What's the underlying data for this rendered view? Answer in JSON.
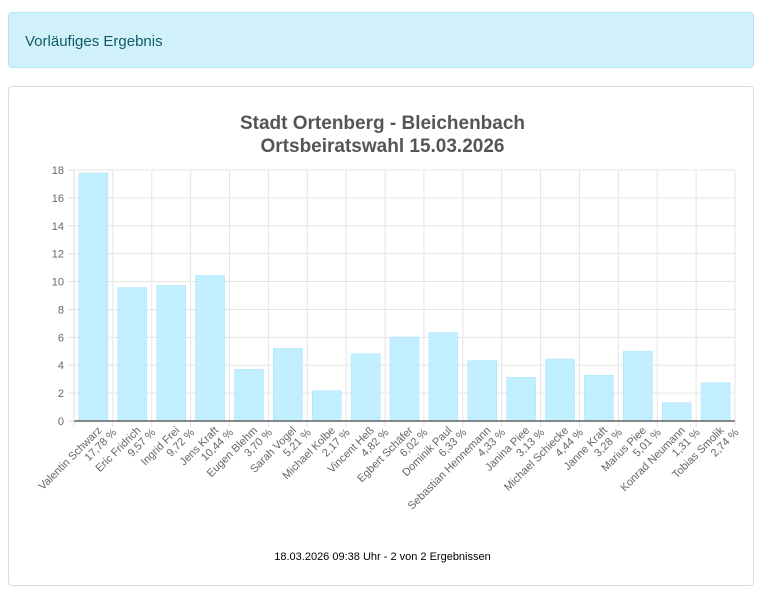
{
  "alert": {
    "text": "Vorläufiges Ergebnis"
  },
  "chart_data": {
    "type": "bar",
    "title": [
      "Stadt Ortenberg - Bleichenbach",
      "Ortsbeiratswahl 15.03.2026"
    ],
    "xlabel": "",
    "ylabel": "",
    "ylim": [
      0,
      18
    ],
    "yticks": [
      0,
      2,
      4,
      6,
      8,
      10,
      12,
      14,
      16,
      18
    ],
    "grid": true,
    "categories": [
      [
        "Valentin Schwarz",
        "17,78 %"
      ],
      [
        "Eric Fridrich",
        "9,57 %"
      ],
      [
        "Ingrid Frei",
        "9,72 %"
      ],
      [
        "Jens Kraft",
        "10,44 %"
      ],
      [
        "Eugen Blehm",
        "3,70 %"
      ],
      [
        "Sarah Vogel",
        "5,21 %"
      ],
      [
        "Michael Kolbe",
        "2,17 %"
      ],
      [
        "Vincent Heß",
        "4,82 %"
      ],
      [
        "Egbert Schäfer",
        "6,02 %"
      ],
      [
        "Dominik Paul",
        "6,33 %"
      ],
      [
        "Sebastian Hennemann",
        "4,33 %"
      ],
      [
        "Janina Piee",
        "3,13 %"
      ],
      [
        "Michael Schiecke",
        "4,44 %"
      ],
      [
        "Janne Kraft",
        "3,28 %"
      ],
      [
        "Marius Piee",
        "5,01 %"
      ],
      [
        "Konrad Neumann",
        "1,31 %"
      ],
      [
        "Tobias Smolik",
        "2,74 %"
      ]
    ],
    "values": [
      17.78,
      9.57,
      9.72,
      10.44,
      3.7,
      5.21,
      2.17,
      4.82,
      6.02,
      6.33,
      4.33,
      3.13,
      4.44,
      3.28,
      5.01,
      1.31,
      2.74
    ],
    "bar_color": "#c2efff",
    "bar_border": "#a5e3f7"
  },
  "footer": {
    "text": "18.03.2026 09:38 Uhr - 2 von 2 Ergebnissen"
  }
}
